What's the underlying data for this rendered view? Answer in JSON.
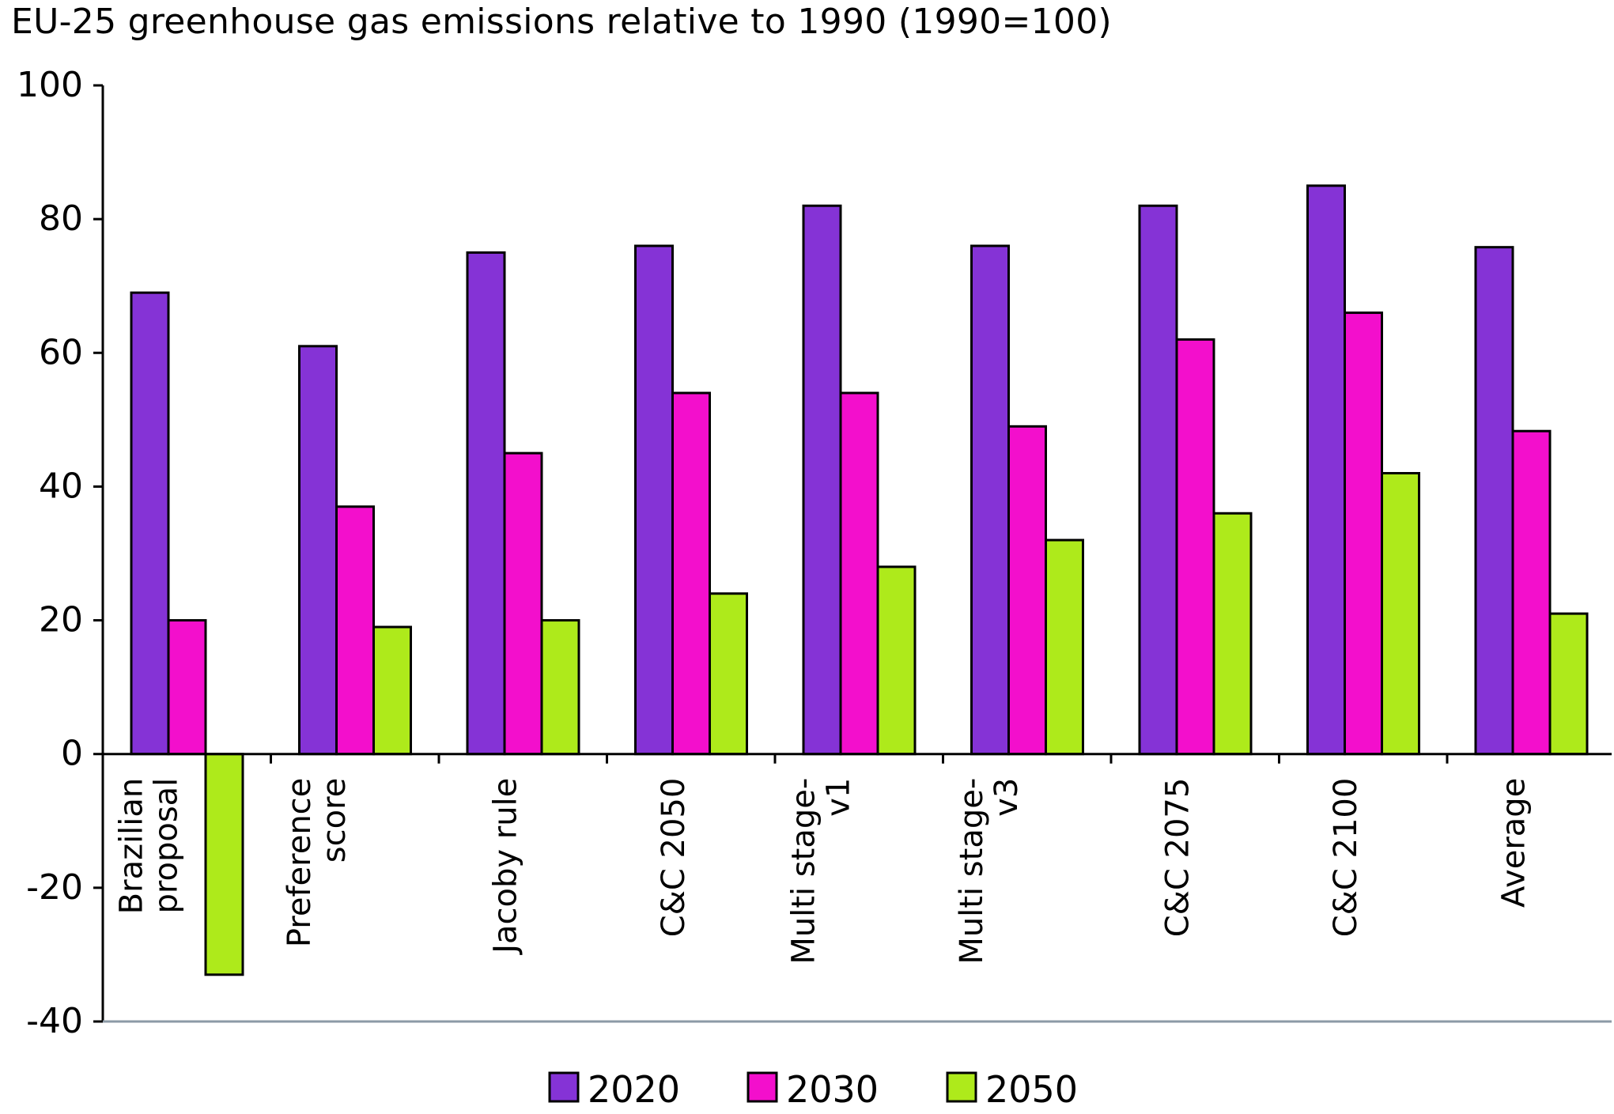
{
  "chart_data": {
    "type": "bar",
    "title": "EU-25 greenhouse gas emissions relative to 1990 (1990=100)",
    "xlabel": "",
    "ylabel": "",
    "ylim": [
      -40,
      100
    ],
    "yticks": [
      100,
      80,
      60,
      40,
      20,
      0,
      -20,
      -40
    ],
    "ytick_labels": [
      "100",
      "80",
      "60",
      "40",
      "20",
      "0",
      "-20",
      "-40"
    ],
    "categories": [
      [
        "Brazilian",
        "proposal"
      ],
      [
        "Preference",
        "score"
      ],
      [
        "Jacoby rule"
      ],
      [
        "C&C 2050"
      ],
      [
        "Multi stage-",
        "v1"
      ],
      [
        "Multi stage-",
        "v3"
      ],
      [
        "C&C 2075"
      ],
      [
        "C&C 2100"
      ],
      [
        "Average"
      ]
    ],
    "series": [
      {
        "name": "2020",
        "color": "#8533d6",
        "values": [
          69,
          61,
          75,
          76,
          82,
          76,
          82,
          85,
          75.8
        ]
      },
      {
        "name": "2030",
        "color": "#f30fcc",
        "values": [
          20,
          37,
          45,
          54,
          54,
          49,
          62,
          66,
          48.3
        ]
      },
      {
        "name": "2050",
        "color": "#aeea1b",
        "values": [
          -33,
          19,
          20,
          24,
          28,
          32,
          36,
          42,
          21
        ]
      }
    ],
    "grid": false,
    "legend_position": "bottom-center"
  }
}
